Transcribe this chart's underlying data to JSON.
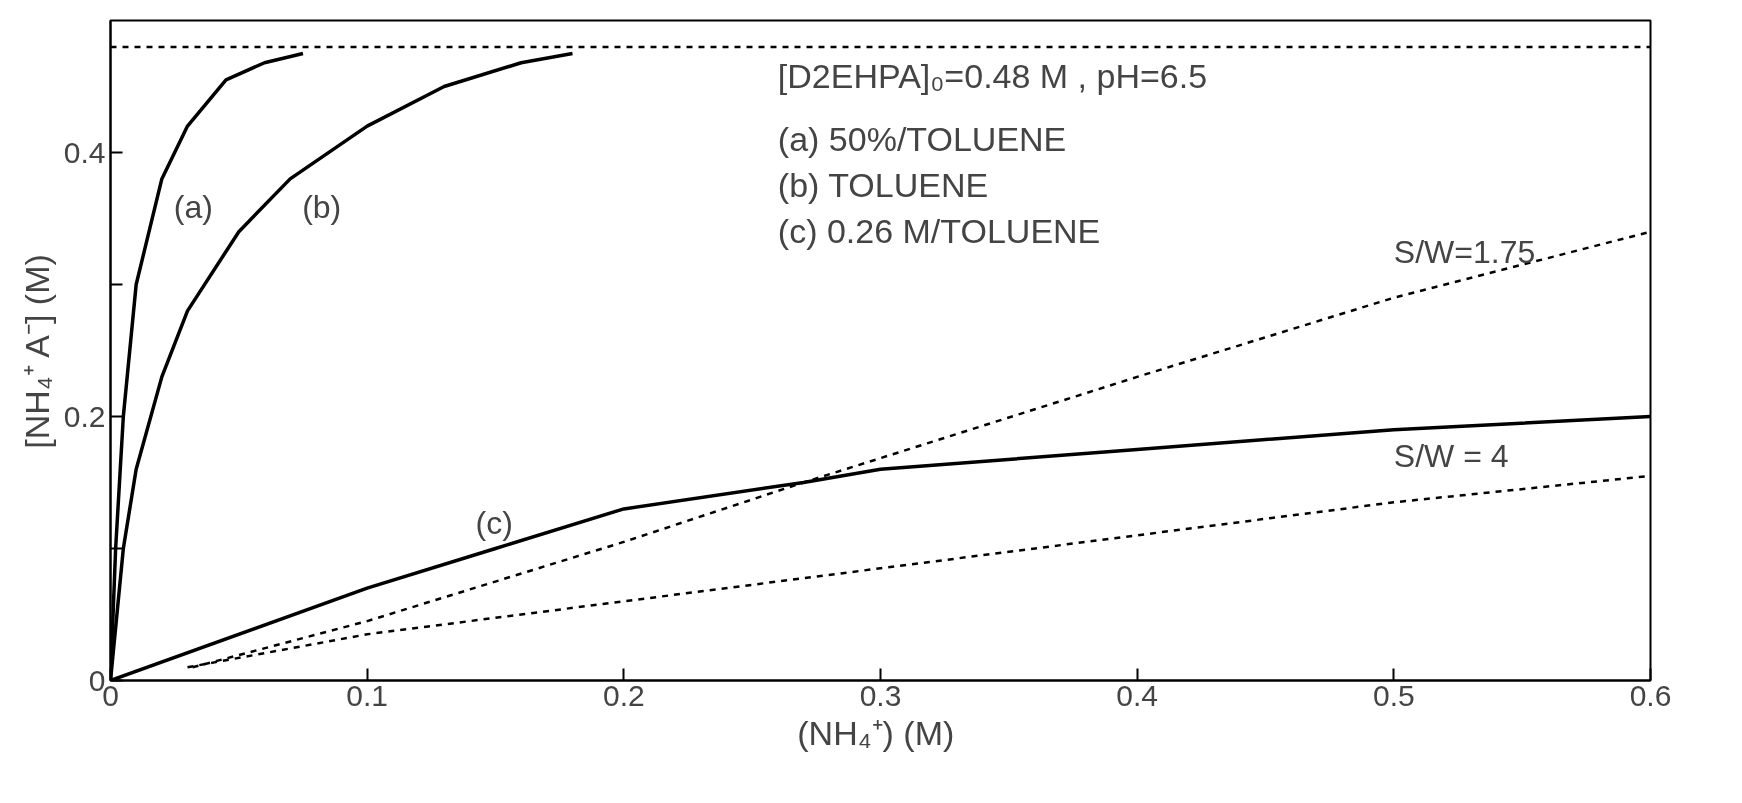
{
  "chart_data": {
    "type": "line",
    "xlabel": "(NH₄⁺)  (M)",
    "ylabel": "[NH₄⁺ A⁻] (M)",
    "xlim": [
      0,
      0.6
    ],
    "ylim": [
      0,
      0.5
    ],
    "xticks": [
      0,
      0.1,
      0.2,
      0.3,
      0.4,
      0.5,
      0.6
    ],
    "yticks": [
      0,
      {
        "value": 0.1,
        "label": null
      },
      0.2,
      {
        "value": 0.3,
        "label": null
      },
      0.4
    ],
    "grid": false,
    "marker": "none",
    "series": [
      {
        "name": "(a)",
        "color": "#000000",
        "line_style": "solid",
        "x": [
          0,
          0.002,
          0.005,
          0.01,
          0.02,
          0.03,
          0.045,
          0.06,
          0.075
        ],
        "values": [
          0,
          0.1,
          0.2,
          0.3,
          0.38,
          0.42,
          0.455,
          0.468,
          0.475
        ]
      },
      {
        "name": "(b)",
        "color": "#000000",
        "line_style": "solid",
        "x": [
          0,
          0.005,
          0.01,
          0.02,
          0.03,
          0.05,
          0.07,
          0.1,
          0.13,
          0.16,
          0.18
        ],
        "values": [
          0,
          0.1,
          0.16,
          0.23,
          0.28,
          0.34,
          0.38,
          0.42,
          0.45,
          0.468,
          0.475
        ]
      },
      {
        "name": "(c)",
        "color": "#000000",
        "line_style": "solid",
        "x": [
          0,
          0.1,
          0.15,
          0.2,
          0.27,
          0.3,
          0.4,
          0.5,
          0.6
        ],
        "values": [
          0,
          0.07,
          0.1,
          0.13,
          0.15,
          0.16,
          0.175,
          0.19,
          0.2
        ]
      },
      {
        "name": "S/W=1.75",
        "color": "#000000",
        "line_style": "dashed",
        "x": [
          0.032,
          0.1,
          0.2,
          0.27,
          0.4,
          0.5,
          0.6
        ],
        "values": [
          0.01,
          0.045,
          0.105,
          0.15,
          0.23,
          0.29,
          0.34
        ]
      },
      {
        "name": "S/W = 4",
        "color": "#000000",
        "line_style": "dashed",
        "x": [
          0.03,
          0.1,
          0.2,
          0.3,
          0.4,
          0.5,
          0.6
        ],
        "values": [
          0.01,
          0.035,
          0.06,
          0.085,
          0.11,
          0.135,
          0.155
        ]
      }
    ],
    "ref_lines": [
      {
        "axis": "y",
        "value": 0.48,
        "label": "[D2EHPA]₀=0.48 M , pH=6.5",
        "line_style": "dashed",
        "color": "#000000"
      }
    ],
    "annotations": [
      "(a) 50%/TOLUENE",
      "(b) TOLUENE",
      "(c) 0.26 M/TOLUENE"
    ]
  }
}
